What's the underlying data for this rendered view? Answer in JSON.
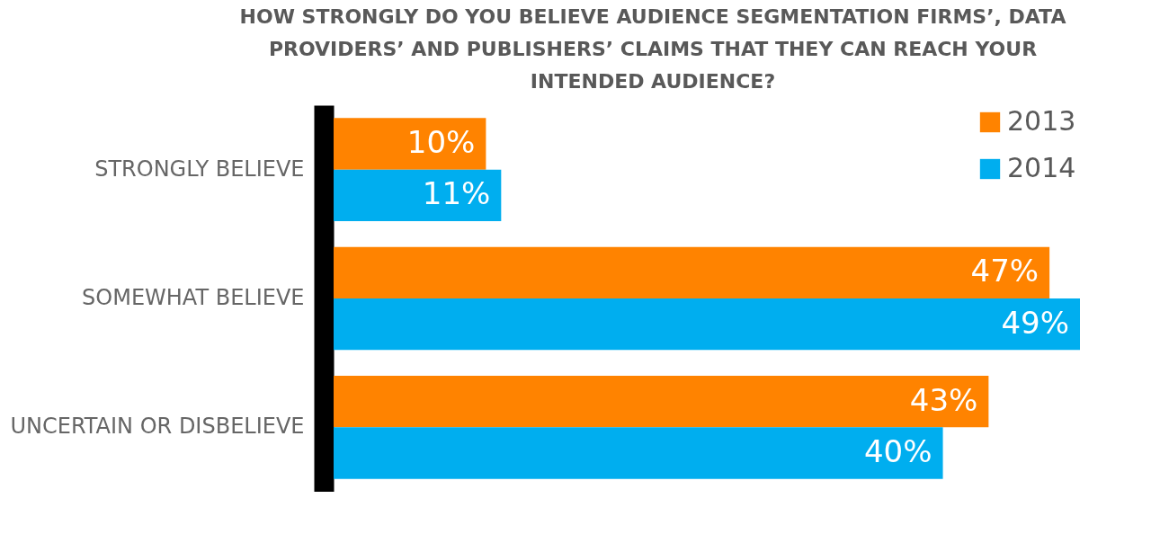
{
  "chart_data": {
    "type": "bar",
    "orientation": "horizontal",
    "title": "HOW STRONGLY DO YOU BELIEVE AUDIENCE SEGMENTATION FIRMS’, DATA PROVIDERS’ AND PUBLISHERS’ CLAIMS THAT THEY CAN REACH YOUR INTENDED AUDIENCE?",
    "categories": [
      "STRONGLY BELIEVE",
      "SOMEWHAT BELIEVE",
      "UNCERTAIN OR DISBELIEVE"
    ],
    "series": [
      {
        "name": "2013",
        "color": "#ff8300",
        "values": [
          10,
          47,
          43
        ],
        "value_labels": [
          "10%",
          "47%",
          "43%"
        ]
      },
      {
        "name": "2014",
        "color": "#00aeef",
        "values": [
          11,
          49,
          40
        ],
        "value_labels": [
          "11%",
          "49%",
          "40%"
        ]
      }
    ],
    "legend": "top right",
    "grid": false
  }
}
